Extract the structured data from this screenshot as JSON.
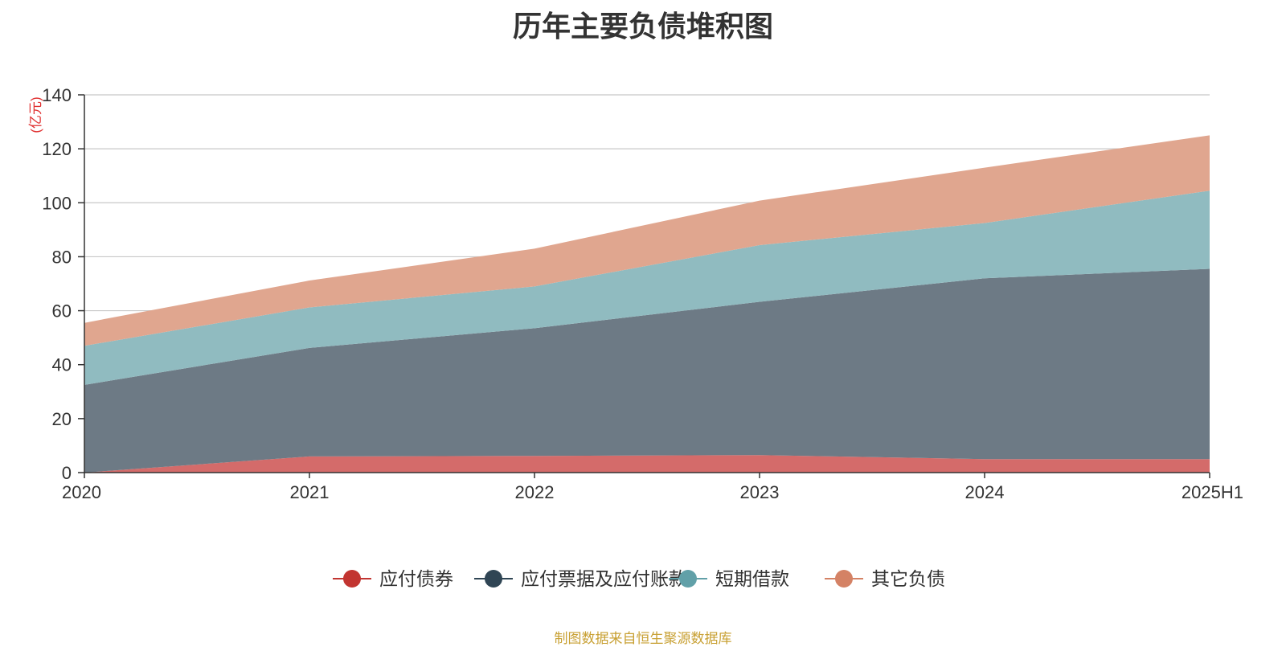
{
  "chart_data": {
    "type": "area",
    "stacked": true,
    "title": "历年主要负债堆积图",
    "ylabel": "(亿元)",
    "xlabel": "",
    "ylim": [
      0,
      140
    ],
    "yticks": [
      0,
      20,
      40,
      60,
      80,
      100,
      120,
      140
    ],
    "grid": true,
    "legend_position": "bottom",
    "categories": [
      "2020",
      "2021",
      "2022",
      "2023",
      "2024",
      "2025H1"
    ],
    "series": [
      {
        "name": "应付债券",
        "color": "#c23531",
        "fill": "#d46b6a",
        "values": [
          0,
          6,
          6.2,
          6.5,
          5,
          5
        ]
      },
      {
        "name": "应付票据及应付账款",
        "color": "#2f4554",
        "fill": "#6d7a85",
        "values": [
          32.5,
          40.2,
          47.3,
          56.8,
          67,
          70.5
        ]
      },
      {
        "name": "短期借款",
        "color": "#61a0a8",
        "fill": "#90bbc0",
        "values": [
          14.5,
          15,
          15.5,
          21,
          20.5,
          29
        ]
      },
      {
        "name": "其它负债",
        "color": "#d48265",
        "fill": "#e0a68f",
        "values": [
          8.5,
          10,
          14,
          16.5,
          20.5,
          20.5
        ]
      }
    ],
    "source": "制图数据来自恒生聚源数据库"
  }
}
